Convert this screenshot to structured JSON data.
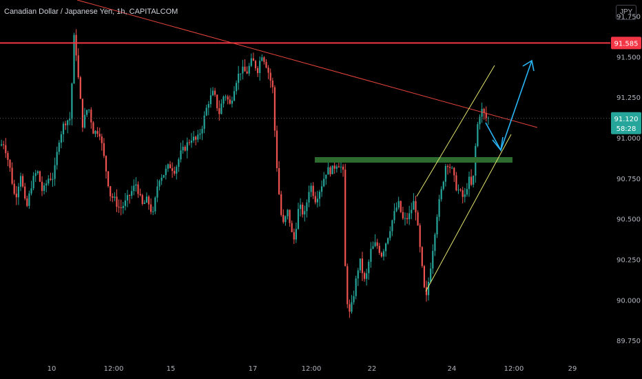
{
  "header": {
    "symbol_title": "Canadian Dollar / Japanese Yen, 1h, CAPITALCOM",
    "currency_button": "JPY"
  },
  "colors": {
    "background": "#000000",
    "up_candle": "#26a69a",
    "down_candle": "#ef5350",
    "resistance_line": "#f23645",
    "trend_line": "#e8463d",
    "support_zone": "#2e6b2e",
    "channel": "#e6e66e",
    "projection_arrow": "#29b6f6",
    "price_dotted": "#5d606b",
    "axis_text": "#b2b5be"
  },
  "chart_data": {
    "type": "candlestick",
    "symbol": "Canadian Dollar / Japanese Yen",
    "timeframe": "1h",
    "source": "CAPITALCOM",
    "currency": "JPY",
    "ylim": [
      89.64,
      91.85
    ],
    "y_ticks": [
      "91.750",
      "91.500",
      "91.250",
      "91.000",
      "90.750",
      "90.500",
      "90.250",
      "90.000",
      "89.750"
    ],
    "x_ticks": [
      "10",
      "12:00",
      "15",
      "17",
      "12:00",
      "22",
      "24",
      "12:00",
      "29"
    ],
    "resistance_price": 91.585,
    "resistance_label": "91.585",
    "current_price": 91.12,
    "current_price_label": "91.120",
    "countdown_label": "58:28",
    "support_zone_price": 90.86,
    "anchor_points": [
      [
        0,
        90.95
      ],
      [
        8,
        90.97
      ],
      [
        16,
        90.82
      ],
      [
        24,
        90.62
      ],
      [
        32,
        90.78
      ],
      [
        40,
        90.55
      ],
      [
        48,
        90.72
      ],
      [
        56,
        90.8
      ],
      [
        64,
        90.66
      ],
      [
        72,
        90.75
      ],
      [
        80,
        90.76
      ],
      [
        88,
        91.0
      ],
      [
        96,
        91.1
      ],
      [
        104,
        91.12
      ],
      [
        110,
        91.66
      ],
      [
        116,
        91.35
      ],
      [
        122,
        91.08
      ],
      [
        130,
        91.2
      ],
      [
        138,
        91.03
      ],
      [
        146,
        91.05
      ],
      [
        154,
        90.85
      ],
      [
        162,
        90.65
      ],
      [
        168,
        90.62
      ],
      [
        176,
        90.56
      ],
      [
        184,
        90.6
      ],
      [
        192,
        90.66
      ],
      [
        200,
        90.72
      ],
      [
        208,
        90.58
      ],
      [
        216,
        90.62
      ],
      [
        224,
        90.52
      ],
      [
        232,
        90.75
      ],
      [
        240,
        90.78
      ],
      [
        248,
        90.83
      ],
      [
        256,
        90.8
      ],
      [
        264,
        90.9
      ],
      [
        272,
        90.95
      ],
      [
        280,
        91.0
      ],
      [
        288,
        90.98
      ],
      [
        296,
        91.08
      ],
      [
        304,
        91.22
      ],
      [
        312,
        91.28
      ],
      [
        320,
        91.15
      ],
      [
        328,
        91.28
      ],
      [
        336,
        91.2
      ],
      [
        344,
        91.35
      ],
      [
        352,
        91.42
      ],
      [
        360,
        91.4
      ],
      [
        368,
        91.48
      ],
      [
        376,
        91.42
      ],
      [
        382,
        91.52
      ],
      [
        388,
        91.46
      ],
      [
        392,
        91.4
      ],
      [
        398,
        91.3
      ],
      [
        402,
        90.95
      ],
      [
        406,
        90.7
      ],
      [
        412,
        90.45
      ],
      [
        420,
        90.55
      ],
      [
        428,
        90.35
      ],
      [
        436,
        90.58
      ],
      [
        444,
        90.52
      ],
      [
        452,
        90.72
      ],
      [
        460,
        90.62
      ],
      [
        468,
        90.7
      ],
      [
        476,
        90.8
      ],
      [
        484,
        90.8
      ],
      [
        492,
        90.85
      ],
      [
        500,
        90.8
      ],
      [
        504,
        90.05
      ],
      [
        510,
        89.9
      ],
      [
        516,
        90.05
      ],
      [
        524,
        90.25
      ],
      [
        532,
        90.1
      ],
      [
        540,
        90.3
      ],
      [
        548,
        90.35
      ],
      [
        556,
        90.28
      ],
      [
        564,
        90.38
      ],
      [
        572,
        90.5
      ],
      [
        580,
        90.6
      ],
      [
        588,
        90.48
      ],
      [
        596,
        90.52
      ],
      [
        604,
        90.62
      ],
      [
        610,
        90.38
      ],
      [
        616,
        90.14
      ],
      [
        620,
        89.98
      ],
      [
        628,
        90.24
      ],
      [
        636,
        90.52
      ],
      [
        644,
        90.7
      ],
      [
        650,
        90.86
      ],
      [
        658,
        90.8
      ],
      [
        664,
        90.7
      ],
      [
        670,
        90.66
      ],
      [
        676,
        90.62
      ],
      [
        682,
        90.75
      ],
      [
        688,
        90.68
      ],
      [
        694,
        91.05
      ],
      [
        700,
        91.18
      ],
      [
        708,
        91.12
      ]
    ]
  }
}
